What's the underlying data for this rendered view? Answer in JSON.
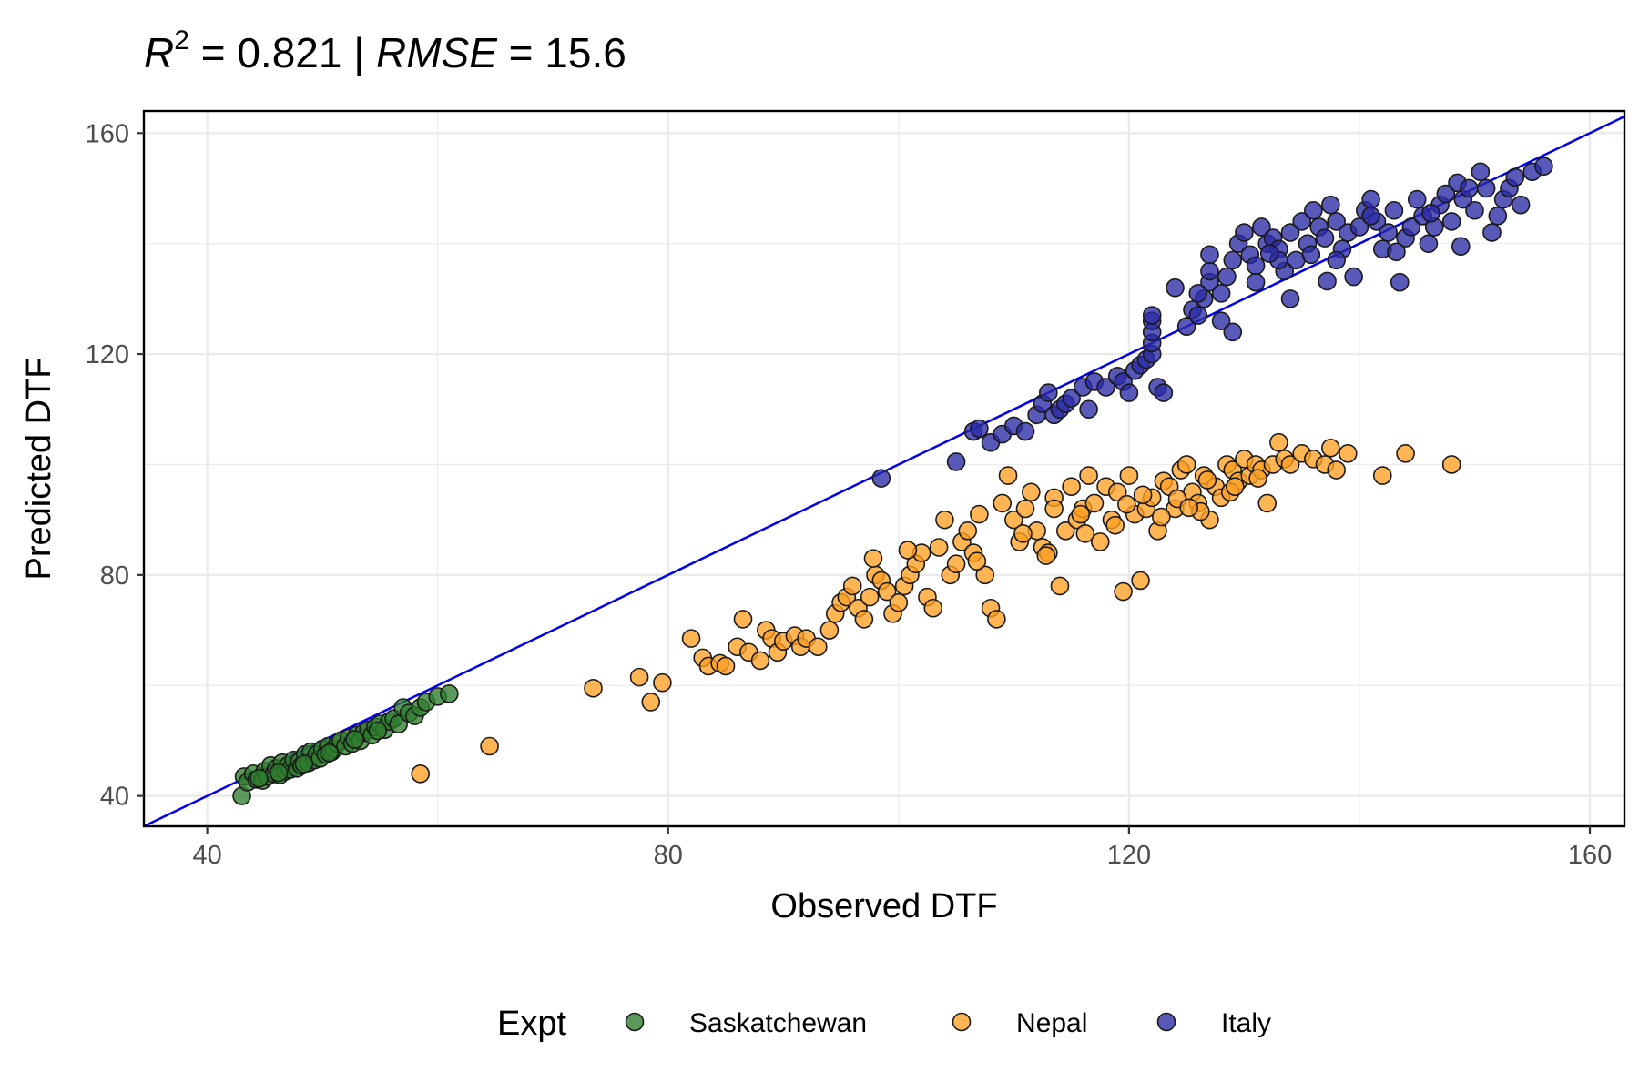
{
  "chart_data": {
    "type": "scatter",
    "title": {
      "r_symbol": "R",
      "r_superscript": "2",
      "r_value": " = 0.821 | ",
      "rmse_symbol": "RMSE",
      "rmse_value": " = 15.6"
    },
    "xlabel": "Observed DTF",
    "ylabel": "Predicted DTF",
    "xlim": [
      34.5,
      163
    ],
    "ylim": [
      34.5,
      164
    ],
    "xticks": [
      40,
      80,
      120,
      160
    ],
    "yticks": [
      40,
      80,
      120,
      160
    ],
    "grid": true,
    "reference_line": {
      "type": "identity",
      "color": "#0000ee"
    },
    "legend": {
      "title": "Expt",
      "position": "bottom",
      "entries": [
        "Saskatchewan",
        "Nepal",
        "Italy"
      ]
    },
    "series": [
      {
        "name": "Saskatchewan",
        "color": "#2e7d2e",
        "points": [
          [
            43,
            40
          ],
          [
            43.2,
            43.5
          ],
          [
            43.5,
            42.5
          ],
          [
            44,
            44
          ],
          [
            44.3,
            43
          ],
          [
            44.8,
            42.8
          ],
          [
            45,
            44.5
          ],
          [
            45.2,
            43.5
          ],
          [
            45.5,
            45.5
          ],
          [
            45.8,
            44
          ],
          [
            46,
            45
          ],
          [
            46.3,
            43.8
          ],
          [
            46.5,
            46
          ],
          [
            46.8,
            44.5
          ],
          [
            47,
            45.5
          ],
          [
            47.2,
            44.8
          ],
          [
            47.5,
            46.5
          ],
          [
            47.8,
            45
          ],
          [
            48,
            46.2
          ],
          [
            48.2,
            45.5
          ],
          [
            48.5,
            47.5
          ],
          [
            48.8,
            46
          ],
          [
            49,
            48
          ],
          [
            49.3,
            46.5
          ],
          [
            49.5,
            47.5
          ],
          [
            49.8,
            46.8
          ],
          [
            50,
            48.5
          ],
          [
            50.3,
            47.5
          ],
          [
            50.5,
            49
          ],
          [
            50.8,
            48
          ],
          [
            51,
            48.5
          ],
          [
            51.3,
            49.5
          ],
          [
            51.6,
            50
          ],
          [
            52,
            49
          ],
          [
            52.3,
            50.5
          ],
          [
            52.6,
            49.5
          ],
          [
            53,
            51
          ],
          [
            53.3,
            50
          ],
          [
            53.6,
            51.5
          ],
          [
            54,
            52
          ],
          [
            54.3,
            51
          ],
          [
            54.6,
            52.5
          ],
          [
            55,
            53
          ],
          [
            55.4,
            52
          ],
          [
            55.8,
            53.5
          ],
          [
            56.2,
            54
          ],
          [
            56.6,
            53
          ],
          [
            57,
            56
          ],
          [
            57.5,
            55
          ],
          [
            58,
            54.5
          ],
          [
            58.5,
            56
          ],
          [
            59,
            57
          ],
          [
            60,
            58
          ],
          [
            61,
            58.5
          ],
          [
            44.5,
            43.2
          ],
          [
            46.2,
            44.2
          ],
          [
            48.4,
            45.8
          ],
          [
            50.6,
            47.8
          ],
          [
            52.8,
            50.2
          ],
          [
            54.8,
            51.8
          ]
        ]
      },
      {
        "name": "Nepal",
        "color": "#ffa024",
        "points": [
          [
            58.5,
            44
          ],
          [
            64.5,
            49
          ],
          [
            73.5,
            59.5
          ],
          [
            77.5,
            61.5
          ],
          [
            78.5,
            57
          ],
          [
            79.5,
            60.5
          ],
          [
            82,
            68.5
          ],
          [
            83,
            65
          ],
          [
            83.5,
            63.5
          ],
          [
            84.5,
            64
          ],
          [
            85,
            63.5
          ],
          [
            86,
            67
          ],
          [
            86.5,
            72
          ],
          [
            87,
            66
          ],
          [
            88,
            64.5
          ],
          [
            88.5,
            70
          ],
          [
            89,
            68.5
          ],
          [
            89.5,
            66
          ],
          [
            90,
            68
          ],
          [
            91,
            69
          ],
          [
            91.5,
            67
          ],
          [
            92,
            68.5
          ],
          [
            93,
            67
          ],
          [
            94,
            70
          ],
          [
            94.5,
            73
          ],
          [
            95,
            75
          ],
          [
            95.5,
            76
          ],
          [
            96,
            78
          ],
          [
            96.5,
            74
          ],
          [
            97,
            72
          ],
          [
            97.5,
            76
          ],
          [
            98,
            80
          ],
          [
            98.5,
            79
          ],
          [
            99,
            77
          ],
          [
            99.5,
            73
          ],
          [
            100,
            75
          ],
          [
            100.5,
            78
          ],
          [
            101,
            80
          ],
          [
            101.5,
            82
          ],
          [
            102,
            84
          ],
          [
            102.5,
            76
          ],
          [
            103,
            74
          ],
          [
            103.5,
            85
          ],
          [
            104,
            90
          ],
          [
            104.5,
            80
          ],
          [
            105,
            82
          ],
          [
            105.5,
            86
          ],
          [
            106,
            88
          ],
          [
            106.5,
            84
          ],
          [
            107,
            91
          ],
          [
            107.5,
            80
          ],
          [
            108,
            74
          ],
          [
            108.5,
            72
          ],
          [
            109,
            93
          ],
          [
            109.5,
            98
          ],
          [
            110,
            90
          ],
          [
            110.5,
            86
          ],
          [
            111,
            92
          ],
          [
            111.5,
            95
          ],
          [
            112,
            88
          ],
          [
            112.5,
            85
          ],
          [
            113,
            84
          ],
          [
            113.5,
            94
          ],
          [
            114,
            78
          ],
          [
            114.5,
            88
          ],
          [
            115,
            96
          ],
          [
            115.5,
            90
          ],
          [
            116,
            92
          ],
          [
            116.5,
            98
          ],
          [
            117,
            93
          ],
          [
            117.5,
            86
          ],
          [
            118,
            96
          ],
          [
            118.5,
            90
          ],
          [
            119,
            95
          ],
          [
            119.5,
            77
          ],
          [
            120,
            98
          ],
          [
            120.5,
            91
          ],
          [
            121,
            79
          ],
          [
            121.5,
            92
          ],
          [
            122,
            94
          ],
          [
            122.5,
            88
          ],
          [
            123,
            97
          ],
          [
            123.5,
            96
          ],
          [
            124,
            92
          ],
          [
            124.5,
            99
          ],
          [
            125,
            100
          ],
          [
            125.5,
            95
          ],
          [
            126,
            93
          ],
          [
            126.5,
            98
          ],
          [
            127,
            90
          ],
          [
            127.5,
            96
          ],
          [
            128,
            94
          ],
          [
            128.5,
            100
          ],
          [
            129,
            99
          ],
          [
            129.5,
            97
          ],
          [
            130,
            101
          ],
          [
            130.5,
            98
          ],
          [
            131,
            100
          ],
          [
            131.5,
            99
          ],
          [
            132,
            93
          ],
          [
            132.5,
            100
          ],
          [
            133,
            104
          ],
          [
            133.5,
            101
          ],
          [
            134,
            100
          ],
          [
            135,
            102
          ],
          [
            136,
            101
          ],
          [
            137,
            100
          ],
          [
            137.5,
            103
          ],
          [
            138,
            99
          ],
          [
            139,
            102
          ],
          [
            142,
            98
          ],
          [
            144,
            102
          ],
          [
            148,
            100
          ],
          [
            112.8,
            83.5
          ],
          [
            116.2,
            87.5
          ],
          [
            118.8,
            89
          ],
          [
            122.8,
            90.5
          ],
          [
            126.2,
            91.5
          ],
          [
            128.8,
            95
          ],
          [
            131.2,
            97.5
          ],
          [
            113.5,
            92
          ],
          [
            115.8,
            91
          ],
          [
            119.8,
            92.8
          ],
          [
            121.2,
            94.5
          ],
          [
            124.2,
            93.8
          ],
          [
            126.8,
            97.2
          ],
          [
            129.2,
            96
          ],
          [
            125.2,
            92.2
          ],
          [
            110.8,
            87.5
          ],
          [
            106.8,
            82.5
          ],
          [
            100.8,
            84.5
          ],
          [
            97.8,
            83
          ]
        ]
      },
      {
        "name": "Italy",
        "color": "#2a2aa6",
        "points": [
          [
            98.5,
            97.5
          ],
          [
            105,
            100.5
          ],
          [
            106.5,
            106
          ],
          [
            107,
            106.5
          ],
          [
            108,
            104
          ],
          [
            109,
            105.5
          ],
          [
            110,
            107
          ],
          [
            111,
            106
          ],
          [
            112,
            109
          ],
          [
            112.5,
            111
          ],
          [
            113,
            113
          ],
          [
            113.5,
            109
          ],
          [
            114,
            110
          ],
          [
            114.5,
            111
          ],
          [
            115,
            112
          ],
          [
            116,
            114
          ],
          [
            116.5,
            110
          ],
          [
            117,
            115
          ],
          [
            118,
            114
          ],
          [
            119,
            116
          ],
          [
            119.5,
            115
          ],
          [
            120,
            113
          ],
          [
            120.5,
            117
          ],
          [
            121,
            118
          ],
          [
            121.5,
            119
          ],
          [
            122,
            120
          ],
          [
            122,
            122
          ],
          [
            122,
            124
          ],
          [
            122,
            126
          ],
          [
            122,
            127
          ],
          [
            122.5,
            114
          ],
          [
            123,
            113
          ],
          [
            124,
            132
          ],
          [
            125,
            125
          ],
          [
            125.5,
            128
          ],
          [
            126,
            127
          ],
          [
            126.5,
            130
          ],
          [
            127,
            133
          ],
          [
            127,
            135
          ],
          [
            127,
            138
          ],
          [
            128,
            131
          ],
          [
            128.5,
            134
          ],
          [
            129,
            137
          ],
          [
            129.5,
            140
          ],
          [
            130,
            142
          ],
          [
            130.5,
            138
          ],
          [
            131,
            136
          ],
          [
            131.5,
            143
          ],
          [
            132,
            140
          ],
          [
            132.5,
            141
          ],
          [
            133,
            139
          ],
          [
            133.5,
            135
          ],
          [
            134,
            142
          ],
          [
            134.5,
            137
          ],
          [
            135,
            144
          ],
          [
            135.5,
            140
          ],
          [
            136,
            146
          ],
          [
            136.5,
            143
          ],
          [
            137,
            141
          ],
          [
            137.5,
            147
          ],
          [
            138,
            144
          ],
          [
            138.5,
            139
          ],
          [
            139,
            142
          ],
          [
            139.5,
            134
          ],
          [
            140,
            143
          ],
          [
            140.5,
            146
          ],
          [
            141,
            148
          ],
          [
            141.5,
            144
          ],
          [
            142,
            139
          ],
          [
            142.5,
            142
          ],
          [
            143,
            146
          ],
          [
            143.5,
            133
          ],
          [
            144,
            141
          ],
          [
            144.5,
            143
          ],
          [
            145,
            148
          ],
          [
            145.5,
            145
          ],
          [
            146,
            140
          ],
          [
            146.5,
            143
          ],
          [
            147,
            147
          ],
          [
            147.5,
            149
          ],
          [
            148,
            144
          ],
          [
            148.5,
            151
          ],
          [
            149,
            148
          ],
          [
            149.5,
            150
          ],
          [
            150,
            146
          ],
          [
            150.5,
            153
          ],
          [
            151,
            150
          ],
          [
            151.5,
            142
          ],
          [
            152,
            145
          ],
          [
            152.5,
            148
          ],
          [
            153,
            150
          ],
          [
            153.5,
            152
          ],
          [
            154,
            147
          ],
          [
            155,
            153
          ],
          [
            156,
            154
          ],
          [
            126,
            131
          ],
          [
            128,
            126
          ],
          [
            129,
            124
          ],
          [
            131,
            133
          ],
          [
            133,
            137
          ],
          [
            134,
            130
          ],
          [
            138,
            137
          ],
          [
            141,
            145
          ],
          [
            143.2,
            138.5
          ],
          [
            146.2,
            145.5
          ],
          [
            148.8,
            139.5
          ],
          [
            132.2,
            138.2
          ],
          [
            135.8,
            138
          ],
          [
            137.2,
            133.2
          ]
        ]
      }
    ]
  }
}
